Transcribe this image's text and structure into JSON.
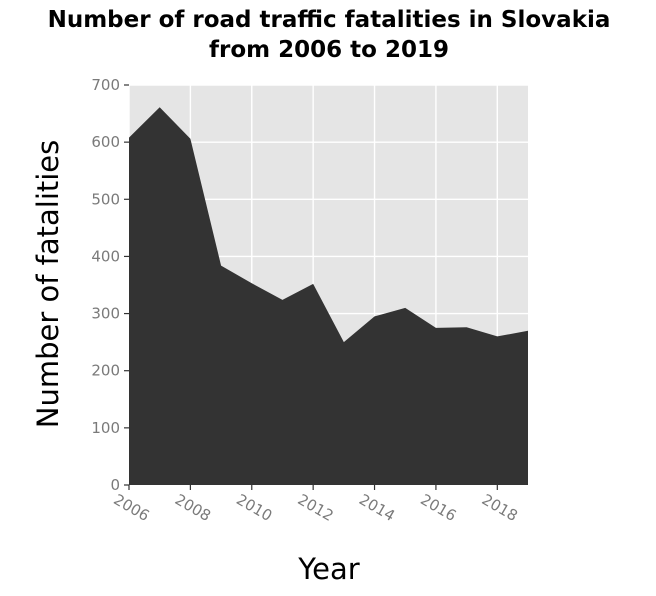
{
  "chart_data": {
    "type": "area",
    "title_line1": "Number of road traffic fatalities in Slovakia",
    "title_line2": "from 2006 to 2019",
    "xlabel": "Year",
    "ylabel": "Number of fatalities",
    "x": [
      2006,
      2007,
      2008,
      2009,
      2010,
      2011,
      2012,
      2013,
      2014,
      2015,
      2016,
      2017,
      2018,
      2019
    ],
    "values": [
      608,
      661,
      606,
      384,
      353,
      324,
      352,
      250,
      295,
      310,
      275,
      276,
      260,
      270
    ],
    "xlim": [
      2006,
      2019
    ],
    "ylim": [
      0,
      700
    ],
    "xticks": [
      2006,
      2008,
      2010,
      2012,
      2014,
      2016,
      2018
    ],
    "yticks": [
      0,
      100,
      200,
      300,
      400,
      500,
      600,
      700
    ],
    "grid": true,
    "colors": {
      "fill": "#333333",
      "panel": "#e5e5e5",
      "grid": "#ffffff",
      "tick_text": "#7a7a7a"
    }
  }
}
